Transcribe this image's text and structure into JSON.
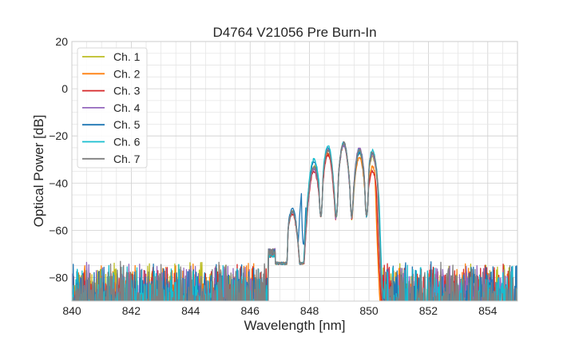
{
  "chart_data": {
    "type": "line",
    "title": "D4764 V21056 Pre Burn-In",
    "xlabel": "Wavelength [nm]",
    "ylabel": "Optical Power [dB]",
    "xlim": [
      840,
      855
    ],
    "ylim": [
      -90,
      20
    ],
    "xticks": [
      840,
      842,
      844,
      846,
      848,
      850,
      852,
      854
    ],
    "yticks": [
      20,
      0,
      -20,
      -40,
      -60,
      -80
    ],
    "grid": true,
    "legend_position": "upper-left",
    "noise_floor_db": -80,
    "series": [
      {
        "name": "Ch. 1",
        "color": "#bcbd22",
        "peaks": [
          -62,
          -52,
          -33,
          -26,
          -24,
          -27,
          -29
        ],
        "edge_cutoff": 850.45
      },
      {
        "name": "Ch. 2",
        "color": "#ff7f0e",
        "peaks": [
          -62,
          -52,
          -34,
          -27,
          -23,
          -29,
          -33
        ],
        "edge_cutoff": 850.35
      },
      {
        "name": "Ch. 3",
        "color": "#d62728",
        "peaks": [
          -63,
          -53,
          -35,
          -28,
          -24,
          -26,
          -35
        ],
        "edge_cutoff": 850.4
      },
      {
        "name": "Ch. 4",
        "color": "#9467bd",
        "peaks": [
          -62,
          -52,
          -34,
          -26,
          -24,
          -25,
          -28
        ],
        "edge_cutoff": 850.45
      },
      {
        "name": "Ch. 5",
        "color": "#1f77b4",
        "peaks": [
          -62,
          -51,
          -31,
          -25,
          -23,
          -27,
          -27
        ],
        "edge_cutoff": 850.45,
        "side_peak": -42
      },
      {
        "name": "Ch. 6",
        "color": "#17becf",
        "peaks": [
          -63,
          -52,
          -30,
          -24,
          -23,
          -26,
          -26
        ],
        "edge_cutoff": 850.5
      },
      {
        "name": "Ch. 7",
        "color": "#7f7f7f",
        "peaks": [
          -62,
          -52,
          -33,
          -26,
          -23,
          -26,
          -27
        ],
        "edge_cutoff": 850.45
      }
    ]
  }
}
